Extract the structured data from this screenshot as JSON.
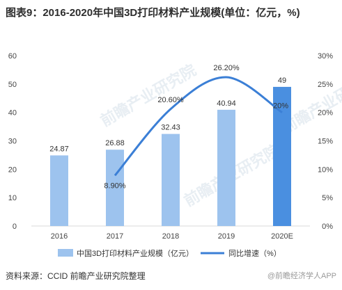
{
  "title": "图表9：2016-2020年中国3D打印材料产业规模(单位：亿元，%)",
  "source": "资料来源：CCID 前瞻产业研究院整理",
  "brand": "@前瞻经济学人APP",
  "watermark": "前瞻产业研究院",
  "colors": {
    "bar_light": "#9dc3ee",
    "bar_dark": "#4a8fe0",
    "line": "#3b7fd6",
    "axis_text": "#444444",
    "grid": "#e6e6e6"
  },
  "chart_data": {
    "type": "bar",
    "categories": [
      "2016",
      "2017",
      "2018",
      "2019",
      "2020E"
    ],
    "series": [
      {
        "name": "中国3D打印材料产业规模（亿元）",
        "type": "bar",
        "axis": "left",
        "values": [
          24.87,
          26.88,
          32.43,
          40.94,
          49
        ],
        "labels": [
          "24.87",
          "26.88",
          "32.43",
          "40.94",
          "49"
        ]
      },
      {
        "name": "同比增速（%）",
        "type": "line",
        "axis": "right",
        "values": [
          null,
          8.9,
          20.6,
          26.2,
          20.0
        ],
        "labels": [
          "",
          "8.90%",
          "20.60%",
          "26.20%",
          "20%"
        ]
      }
    ],
    "y_left": {
      "lim": [
        0,
        60
      ],
      "ticks": [
        "0",
        "10",
        "20",
        "30",
        "40",
        "50",
        "60"
      ]
    },
    "y_right": {
      "lim": [
        0,
        30
      ],
      "ticks": [
        "0%",
        "5%",
        "10%",
        "15%",
        "20%",
        "25%",
        "30%"
      ]
    },
    "grid": false,
    "legend": "bottom"
  }
}
